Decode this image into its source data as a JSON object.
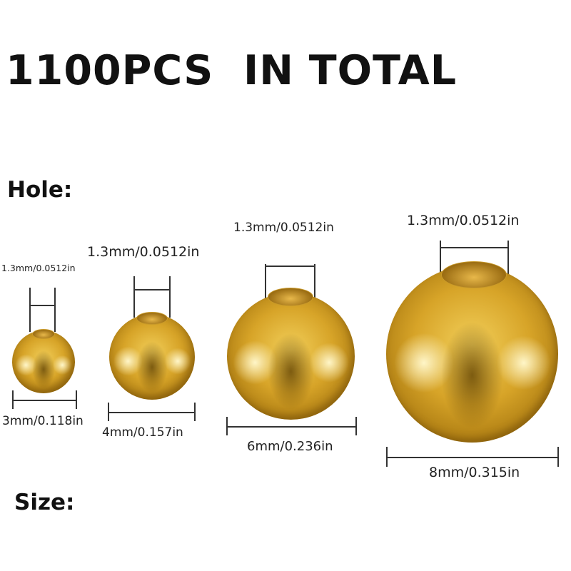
{
  "title": "1100PCS  IN TOTAL",
  "hole_heading": "Hole:",
  "size_heading": "Size:",
  "bead_color": "#d7a428",
  "beads": [
    {
      "hole": "1.3mm/0.0512in",
      "size": "3mm/0.118in"
    },
    {
      "hole": "1.3mm/0.0512in",
      "size": "4mm/0.157in"
    },
    {
      "hole": "1.3mm/0.0512in",
      "size": "6mm/0.236in"
    },
    {
      "hole": "1.3mm/0.0512in",
      "size": "8mm/0.315in"
    }
  ]
}
